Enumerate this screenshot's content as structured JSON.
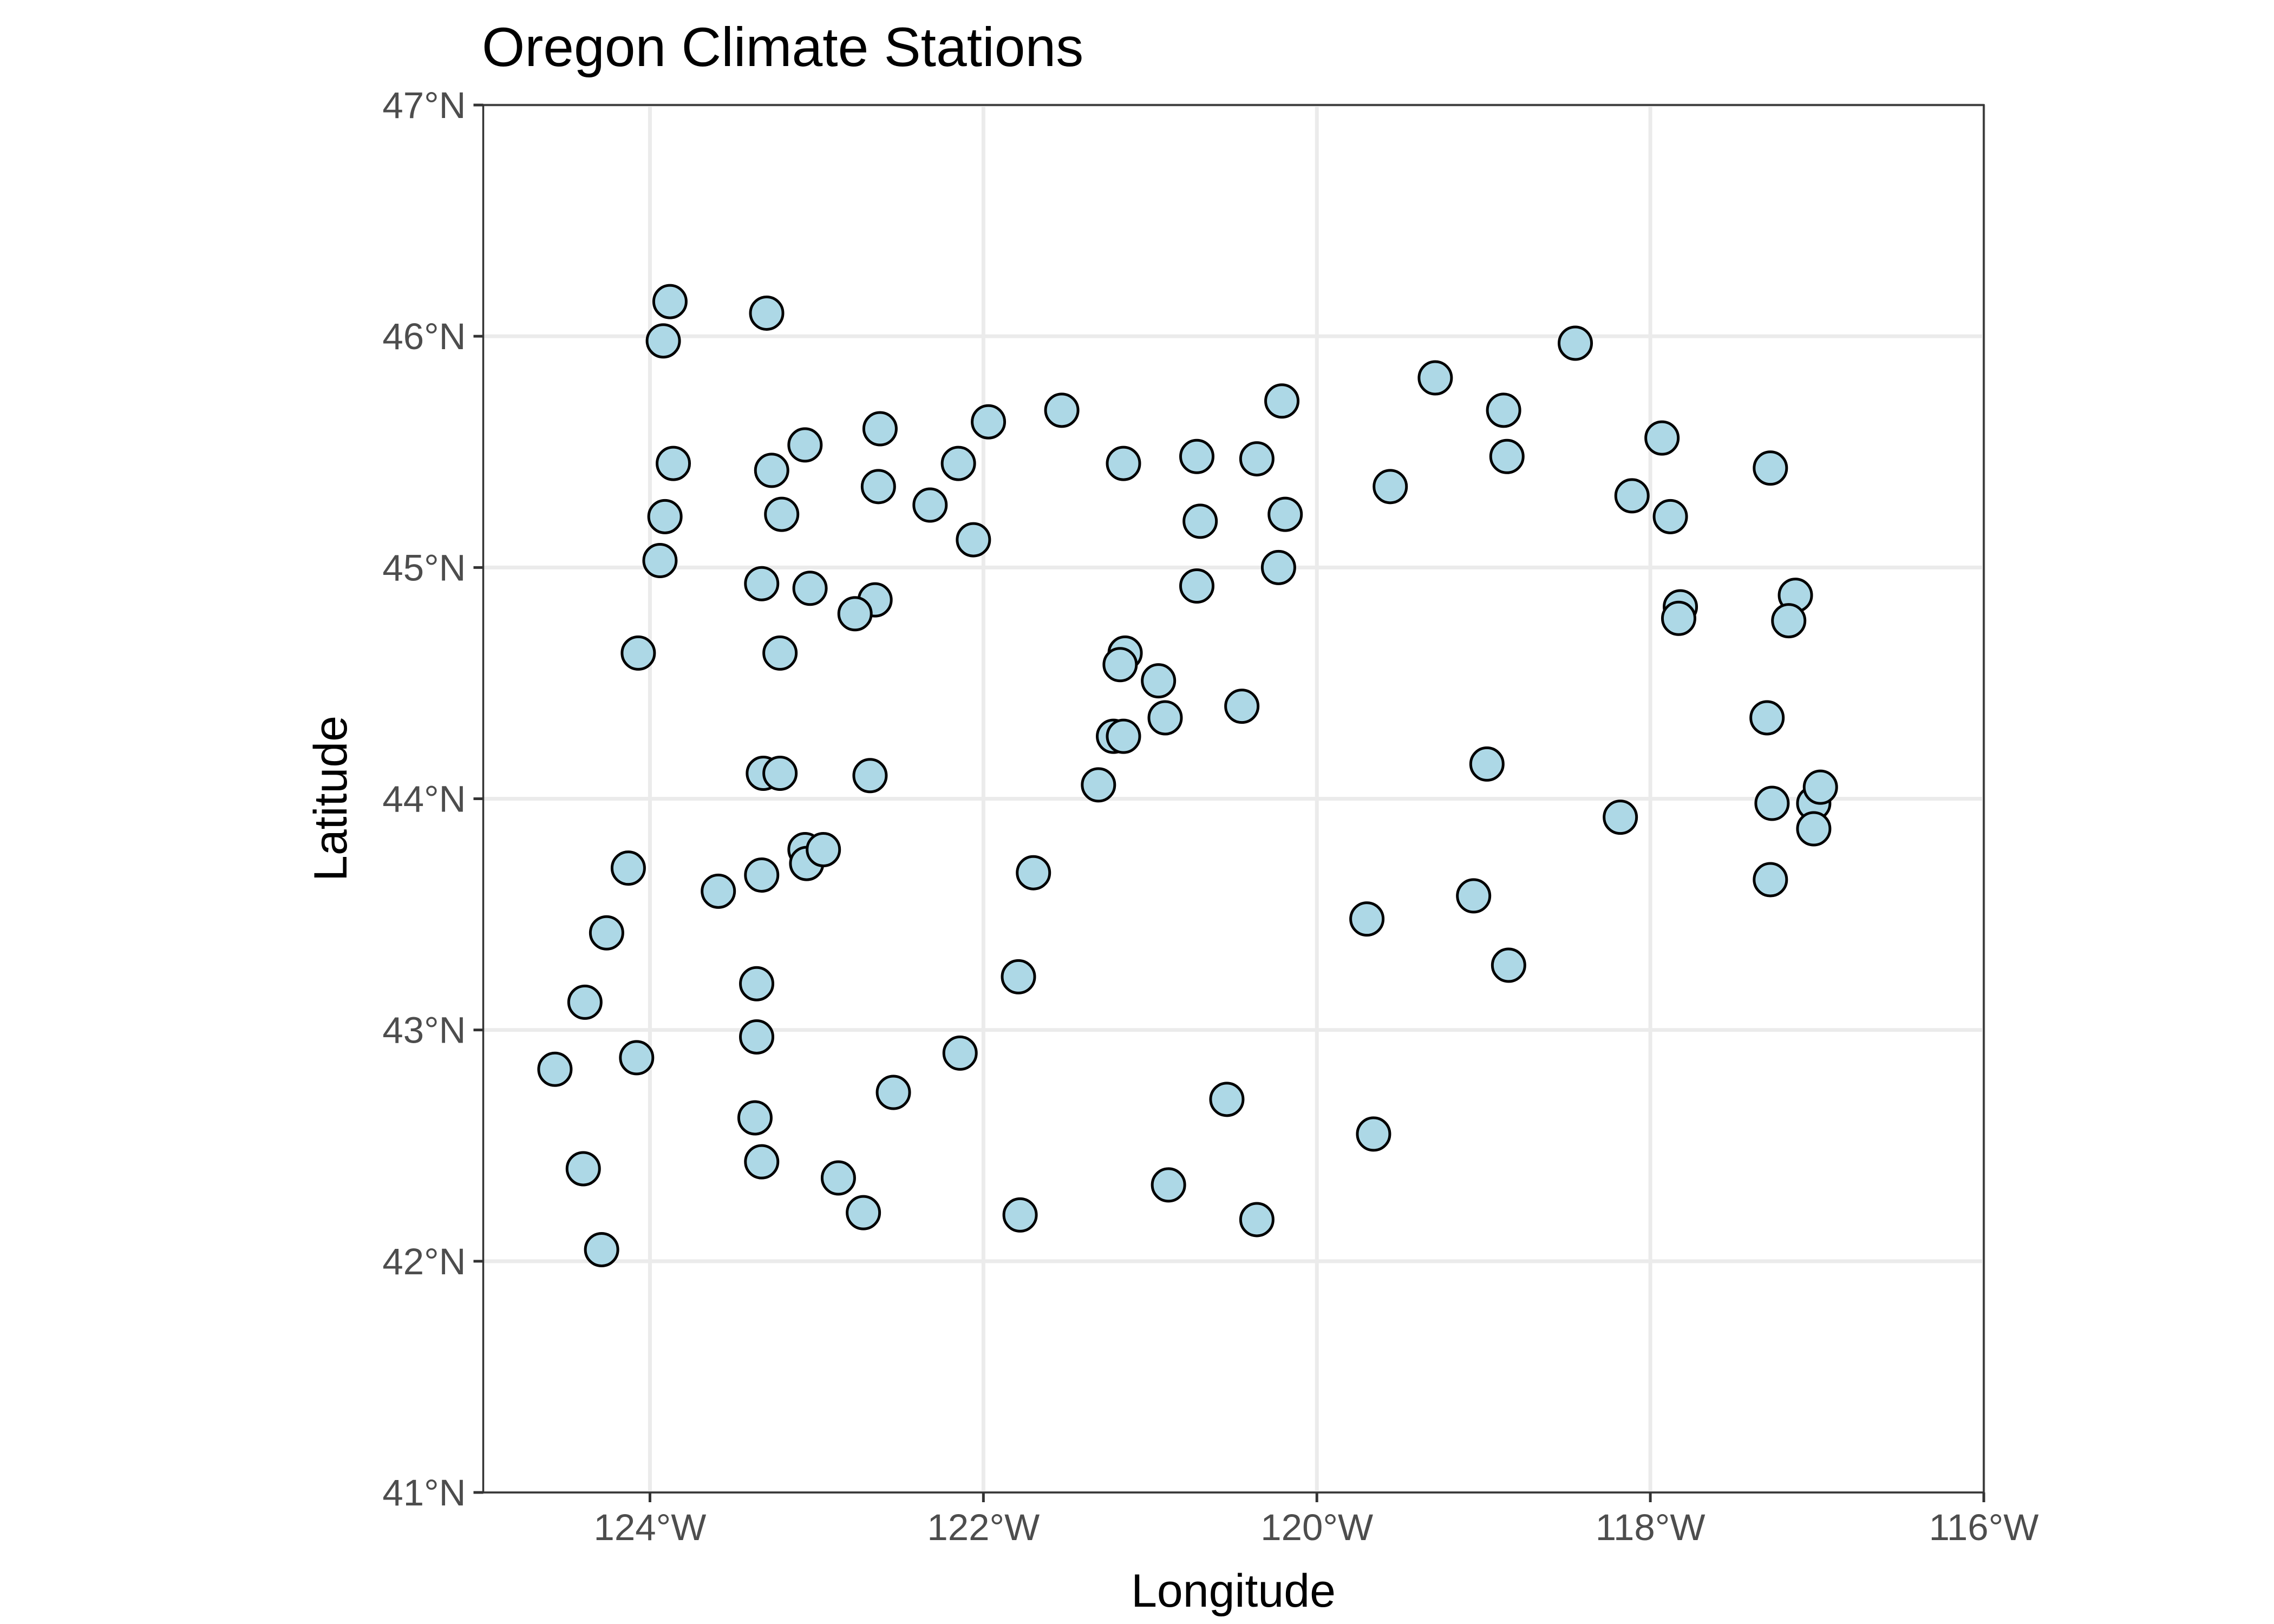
{
  "title": "Oregon Climate Stations",
  "xlabel": "Longitude",
  "ylabel": "Latitude",
  "colors": {
    "point_fill": "#add8e6",
    "point_outline": "#000000",
    "county_line": "#333333",
    "grid": "#ebebeb",
    "background": "#ffffff"
  },
  "chart_data": {
    "type": "scatter",
    "title": "Oregon Climate Stations",
    "xlabel": "Longitude",
    "ylabel": "Latitude",
    "xlim": [
      -125,
      -116
    ],
    "ylim": [
      41,
      47
    ],
    "grid": true,
    "legend": "none",
    "x_ticks": [
      {
        "value": -124,
        "label": "124°W"
      },
      {
        "value": -122,
        "label": "122°W"
      },
      {
        "value": -120,
        "label": "120°W"
      },
      {
        "value": -118,
        "label": "118°W"
      },
      {
        "value": -116,
        "label": "116°W"
      }
    ],
    "y_ticks": [
      {
        "value": 41,
        "label": "41°N"
      },
      {
        "value": 42,
        "label": "42°N"
      },
      {
        "value": 43,
        "label": "43°N"
      },
      {
        "value": 44,
        "label": "44°N"
      },
      {
        "value": 45,
        "label": "45°N"
      },
      {
        "value": 46,
        "label": "46°N"
      },
      {
        "value": 47,
        "label": "47°N"
      }
    ],
    "points": [
      {
        "lon": -123.88,
        "lat": 46.15
      },
      {
        "lon": -123.92,
        "lat": 45.98
      },
      {
        "lon": -123.3,
        "lat": 46.1
      },
      {
        "lon": -123.86,
        "lat": 45.45
      },
      {
        "lon": -123.91,
        "lat": 45.22
      },
      {
        "lon": -123.94,
        "lat": 45.03
      },
      {
        "lon": -124.07,
        "lat": 44.63
      },
      {
        "lon": -123.07,
        "lat": 45.53
      },
      {
        "lon": -123.27,
        "lat": 45.42
      },
      {
        "lon": -123.21,
        "lat": 45.23
      },
      {
        "lon": -123.33,
        "lat": 44.93
      },
      {
        "lon": -123.04,
        "lat": 44.91
      },
      {
        "lon": -122.65,
        "lat": 44.86
      },
      {
        "lon": -122.77,
        "lat": 44.8
      },
      {
        "lon": -123.22,
        "lat": 44.63
      },
      {
        "lon": -123.32,
        "lat": 44.11
      },
      {
        "lon": -123.22,
        "lat": 44.11
      },
      {
        "lon": -122.68,
        "lat": 44.1
      },
      {
        "lon": -122.62,
        "lat": 45.6
      },
      {
        "lon": -122.63,
        "lat": 45.35
      },
      {
        "lon": -122.32,
        "lat": 45.27
      },
      {
        "lon": -122.15,
        "lat": 45.45
      },
      {
        "lon": -122.06,
        "lat": 45.12
      },
      {
        "lon": -121.97,
        "lat": 45.63
      },
      {
        "lon": -121.53,
        "lat": 45.68
      },
      {
        "lon": -121.16,
        "lat": 45.45
      },
      {
        "lon": -120.72,
        "lat": 45.48
      },
      {
        "lon": -120.7,
        "lat": 45.2
      },
      {
        "lon": -120.72,
        "lat": 44.92
      },
      {
        "lon": -120.36,
        "lat": 45.47
      },
      {
        "lon": -120.21,
        "lat": 45.72
      },
      {
        "lon": -120.19,
        "lat": 45.23
      },
      {
        "lon": -120.23,
        "lat": 45.0
      },
      {
        "lon": -121.15,
        "lat": 44.63
      },
      {
        "lon": -121.18,
        "lat": 44.58
      },
      {
        "lon": -120.95,
        "lat": 44.51
      },
      {
        "lon": -120.91,
        "lat": 44.35
      },
      {
        "lon": -120.45,
        "lat": 44.4
      },
      {
        "lon": -121.22,
        "lat": 44.27
      },
      {
        "lon": -121.16,
        "lat": 44.27
      },
      {
        "lon": -121.31,
        "lat": 44.06
      },
      {
        "lon": -121.7,
        "lat": 43.68
      },
      {
        "lon": -123.07,
        "lat": 43.78
      },
      {
        "lon": -123.06,
        "lat": 43.72
      },
      {
        "lon": -122.96,
        "lat": 43.78
      },
      {
        "lon": -123.33,
        "lat": 43.67
      },
      {
        "lon": -123.59,
        "lat": 43.6
      },
      {
        "lon": -124.13,
        "lat": 43.7
      },
      {
        "lon": -124.26,
        "lat": 43.42
      },
      {
        "lon": -124.39,
        "lat": 43.12
      },
      {
        "lon": -124.08,
        "lat": 42.88
      },
      {
        "lon": -124.57,
        "lat": 42.83
      },
      {
        "lon": -124.4,
        "lat": 42.4
      },
      {
        "lon": -124.29,
        "lat": 42.05
      },
      {
        "lon": -123.36,
        "lat": 43.2
      },
      {
        "lon": -123.36,
        "lat": 42.97
      },
      {
        "lon": -123.37,
        "lat": 42.62
      },
      {
        "lon": -123.33,
        "lat": 42.43
      },
      {
        "lon": -122.87,
        "lat": 42.36
      },
      {
        "lon": -122.72,
        "lat": 42.21
      },
      {
        "lon": -122.54,
        "lat": 42.73
      },
      {
        "lon": -122.14,
        "lat": 42.9
      },
      {
        "lon": -121.79,
        "lat": 43.23
      },
      {
        "lon": -121.78,
        "lat": 42.2
      },
      {
        "lon": -120.89,
        "lat": 42.33
      },
      {
        "lon": -120.54,
        "lat": 42.7
      },
      {
        "lon": -120.36,
        "lat": 42.18
      },
      {
        "lon": -119.66,
        "lat": 42.55
      },
      {
        "lon": -119.7,
        "lat": 43.48
      },
      {
        "lon": -119.06,
        "lat": 43.58
      },
      {
        "lon": -118.85,
        "lat": 43.28
      },
      {
        "lon": -118.98,
        "lat": 44.15
      },
      {
        "lon": -118.18,
        "lat": 43.92
      },
      {
        "lon": -119.56,
        "lat": 45.35
      },
      {
        "lon": -119.29,
        "lat": 45.82
      },
      {
        "lon": -118.88,
        "lat": 45.68
      },
      {
        "lon": -118.86,
        "lat": 45.48
      },
      {
        "lon": -118.45,
        "lat": 45.97
      },
      {
        "lon": -117.93,
        "lat": 45.56
      },
      {
        "lon": -118.11,
        "lat": 45.31
      },
      {
        "lon": -117.88,
        "lat": 45.22
      },
      {
        "lon": -117.28,
        "lat": 45.43
      },
      {
        "lon": -117.82,
        "lat": 44.83
      },
      {
        "lon": -117.83,
        "lat": 44.78
      },
      {
        "lon": -117.13,
        "lat": 44.88
      },
      {
        "lon": -117.17,
        "lat": 44.77
      },
      {
        "lon": -117.3,
        "lat": 44.35
      },
      {
        "lon": -117.27,
        "lat": 43.98
      },
      {
        "lon": -117.02,
        "lat": 43.98
      },
      {
        "lon": -116.98,
        "lat": 44.05
      },
      {
        "lon": -117.02,
        "lat": 43.87
      },
      {
        "lon": -117.28,
        "lat": 43.65
      }
    ]
  }
}
